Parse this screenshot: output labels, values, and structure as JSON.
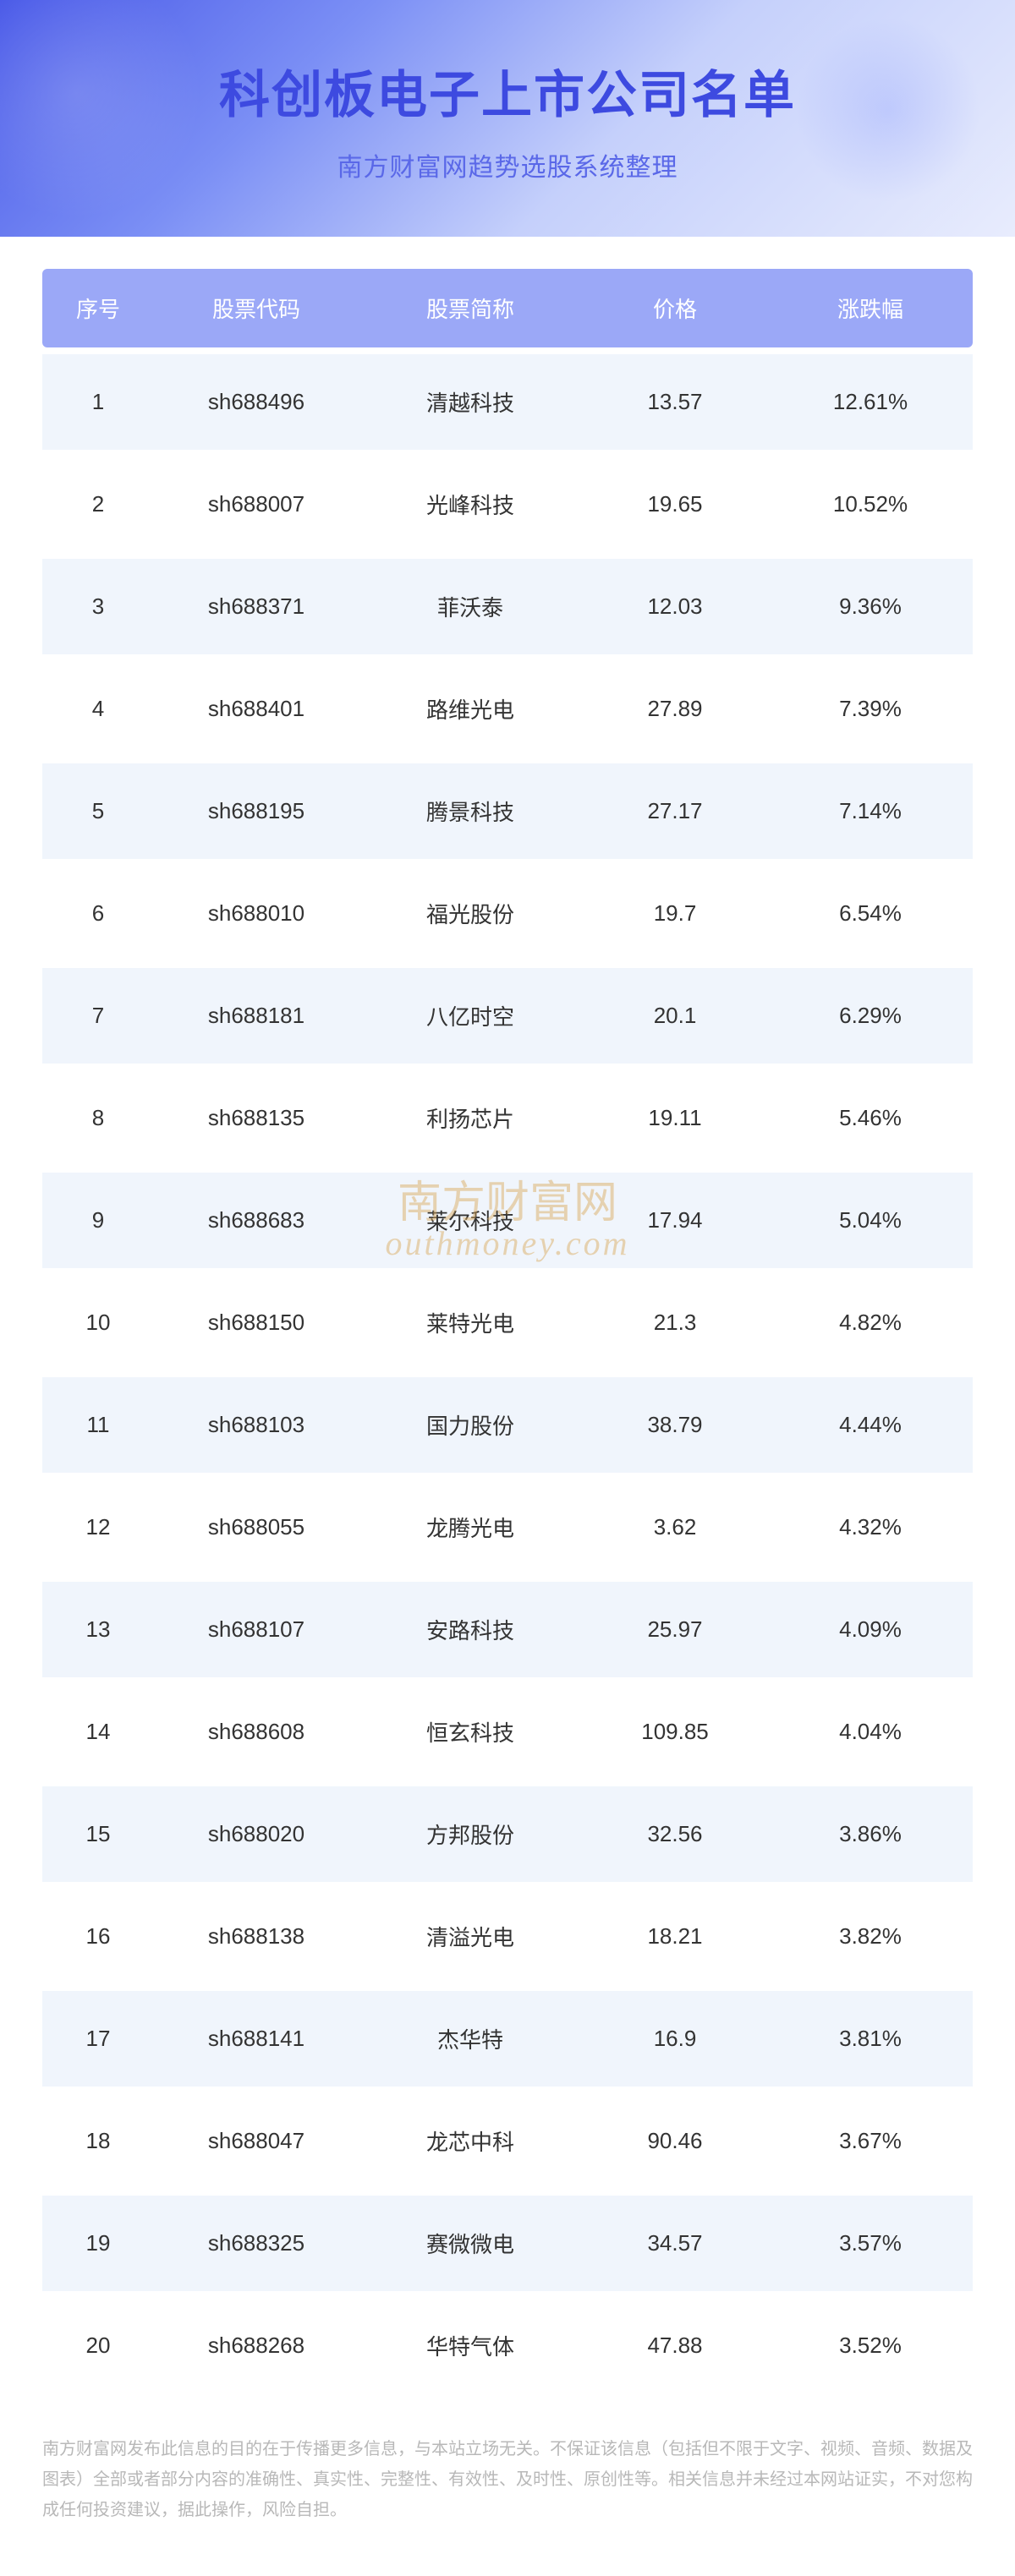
{
  "header": {
    "title": "科创板电子上市公司名单",
    "subtitle": "南方财富网趋势选股系统整理"
  },
  "table": {
    "columns": [
      "序号",
      "股票代码",
      "股票简称",
      "价格",
      "涨跌幅"
    ],
    "rows": [
      {
        "seq": "1",
        "code": "sh688496",
        "name": "清越科技",
        "price": "13.57",
        "change": "12.61%"
      },
      {
        "seq": "2",
        "code": "sh688007",
        "name": "光峰科技",
        "price": "19.65",
        "change": "10.52%"
      },
      {
        "seq": "3",
        "code": "sh688371",
        "name": "菲沃泰",
        "price": "12.03",
        "change": "9.36%"
      },
      {
        "seq": "4",
        "code": "sh688401",
        "name": "路维光电",
        "price": "27.89",
        "change": "7.39%"
      },
      {
        "seq": "5",
        "code": "sh688195",
        "name": "腾景科技",
        "price": "27.17",
        "change": "7.14%"
      },
      {
        "seq": "6",
        "code": "sh688010",
        "name": "福光股份",
        "price": "19.7",
        "change": "6.54%"
      },
      {
        "seq": "7",
        "code": "sh688181",
        "name": "八亿时空",
        "price": "20.1",
        "change": "6.29%"
      },
      {
        "seq": "8",
        "code": "sh688135",
        "name": "利扬芯片",
        "price": "19.11",
        "change": "5.46%"
      },
      {
        "seq": "9",
        "code": "sh688683",
        "name": "莱尔科技",
        "price": "17.94",
        "change": "5.04%"
      },
      {
        "seq": "10",
        "code": "sh688150",
        "name": "莱特光电",
        "price": "21.3",
        "change": "4.82%"
      },
      {
        "seq": "11",
        "code": "sh688103",
        "name": "国力股份",
        "price": "38.79",
        "change": "4.44%"
      },
      {
        "seq": "12",
        "code": "sh688055",
        "name": "龙腾光电",
        "price": "3.62",
        "change": "4.32%"
      },
      {
        "seq": "13",
        "code": "sh688107",
        "name": "安路科技",
        "price": "25.97",
        "change": "4.09%"
      },
      {
        "seq": "14",
        "code": "sh688608",
        "name": "恒玄科技",
        "price": "109.85",
        "change": "4.04%"
      },
      {
        "seq": "15",
        "code": "sh688020",
        "name": "方邦股份",
        "price": "32.56",
        "change": "3.86%"
      },
      {
        "seq": "16",
        "code": "sh688138",
        "name": "清溢光电",
        "price": "18.21",
        "change": "3.82%"
      },
      {
        "seq": "17",
        "code": "sh688141",
        "name": "杰华特",
        "price": "16.9",
        "change": "3.81%"
      },
      {
        "seq": "18",
        "code": "sh688047",
        "name": "龙芯中科",
        "price": "90.46",
        "change": "3.67%"
      },
      {
        "seq": "19",
        "code": "sh688325",
        "name": "赛微微电",
        "price": "34.57",
        "change": "3.57%"
      },
      {
        "seq": "20",
        "code": "sh688268",
        "name": "华特气体",
        "price": "47.88",
        "change": "3.52%"
      }
    ]
  },
  "watermark": {
    "line1": "南方财富网",
    "line2": "outhmoney.com"
  },
  "disclaimer": "南方财富网发布此信息的目的在于传播更多信息，与本站立场无关。不保证该信息（包括但不限于文字、视频、音频、数据及图表）全部或者部分内容的准确性、真实性、完整性、有效性、及时性、原创性等。相关信息并未经过本网站证实，不对您构成任何投资建议，据此操作，风险自担。",
  "styling": {
    "header_gradient_start": "#4a5ae8",
    "header_gradient_mid": "#7b8ff5",
    "header_gradient_end": "#e8ecfd",
    "title_color": "#3d4ae0",
    "subtitle_color": "#5a68e8",
    "table_header_bg": "#9ba8f7",
    "table_header_text": "#ffffff",
    "row_odd_bg": "#f0f5fc",
    "row_even_bg": "#ffffff",
    "cell_text_color": "#333333",
    "watermark_color": "#d9a656",
    "disclaimer_color": "#b8b8b8",
    "title_fontsize": 60,
    "subtitle_fontsize": 30,
    "header_fontsize": 26,
    "cell_fontsize": 26,
    "disclaimer_fontsize": 20
  }
}
